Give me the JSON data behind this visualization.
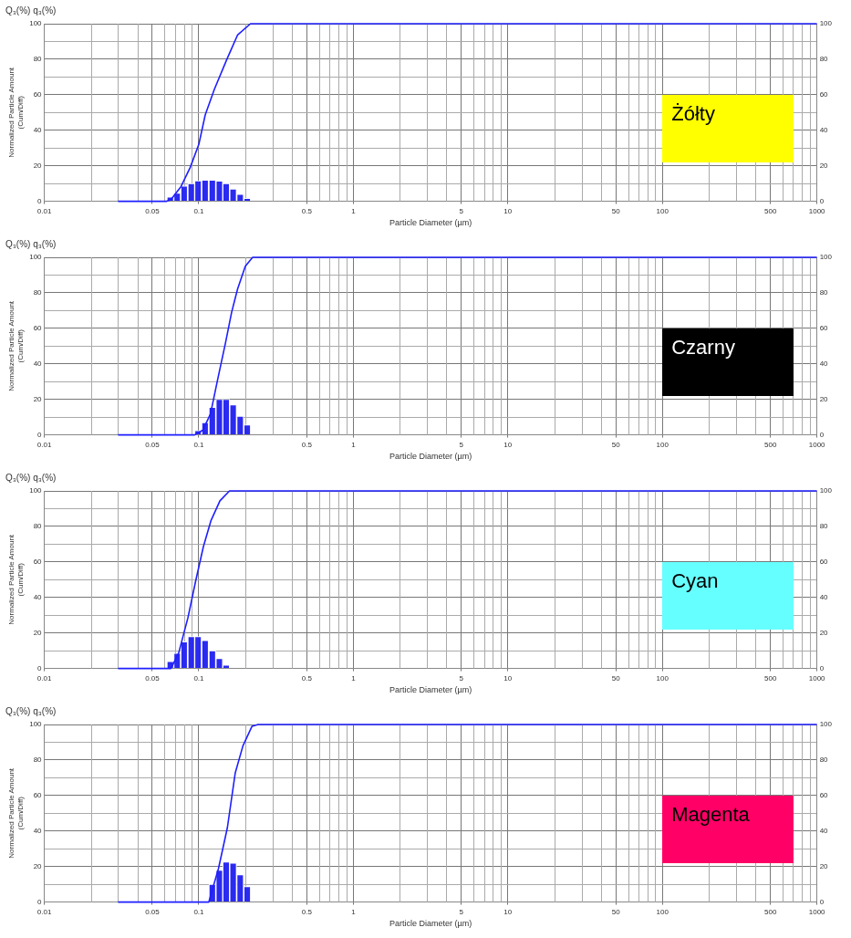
{
  "chart_data": [
    {
      "type": "histogram",
      "title": "Q₃(%) q₃(%)",
      "xlabel": "Particle Diameter (µm)",
      "ylabel": "Normalized Particle Amount\n(Cum/Diff)",
      "annotations": [
        "Żółty"
      ],
      "bins": [
        0.062,
        0.069,
        0.076,
        0.085,
        0.094,
        0.104,
        0.116,
        0.129,
        0.143,
        0.158,
        0.176,
        0.195,
        0.217
      ],
      "values": [
        2.4,
        4.6,
        8.6,
        10,
        11.6,
        12,
        12,
        11.4,
        10,
        7,
        4,
        1.7
      ],
      "color": "#2a2af0",
      "series": [
        {
          "type": "line",
          "color": "#1f1fff",
          "x": [
            0.03,
            0.062,
            0.066,
            0.0767,
            0.0879,
            0.1,
            0.11,
            0.126,
            0.152,
            0.178,
            0.216,
            1000
          ],
          "values": [
            0,
            0,
            1,
            8.3,
            19,
            32,
            48.6,
            63,
            80,
            93.6,
            100,
            100
          ]
        }
      ],
      "log": "x",
      "xlim": [
        0.01,
        1000
      ],
      "xticks": [
        0.01,
        0.05,
        0.1,
        0.5,
        1,
        5,
        10,
        50,
        100,
        500,
        1000
      ],
      "ylim": [
        0,
        100
      ],
      "yticks": [
        0,
        {
          "value": 10,
          "label": null
        },
        20,
        {
          "value": 30,
          "label": null
        },
        40,
        {
          "value": 50,
          "label": null
        },
        60,
        {
          "value": 70,
          "label": null
        },
        80,
        {
          "value": 90,
          "label": null
        },
        100
      ],
      "y2lim": [
        0,
        100
      ],
      "y2ticks": [
        0,
        20,
        40,
        60,
        80,
        100
      ],
      "grid": true,
      "marker": "none"
    },
    {
      "type": "histogram",
      "title": "Q₃(%) q₃(%)",
      "xlabel": "Particle Diameter (µm)",
      "ylabel": "Normalized Particle Amount\n(Cum/Diff)",
      "annotations": [
        "Czarny"
      ],
      "bins": [
        0.094,
        0.104,
        0.116,
        0.129,
        0.143,
        0.158,
        0.176,
        0.195,
        0.217
      ],
      "values": [
        2.4,
        7,
        15.5,
        20,
        20,
        17,
        10.5,
        5.7
      ],
      "color": "#2a2af0",
      "series": [
        {
          "type": "line",
          "color": "#1f1fff",
          "x": [
            0.03,
            0.094,
            0.106,
            0.119,
            0.133,
            0.149,
            0.163,
            0.178,
            0.2,
            0.223,
            1000
          ],
          "values": [
            0,
            0,
            2.6,
            11.8,
            32,
            52,
            69,
            82,
            95,
            100,
            100
          ]
        }
      ],
      "log": "x",
      "xlim": [
        0.01,
        1000
      ],
      "xticks": [
        0.01,
        0.05,
        0.1,
        0.5,
        1,
        5,
        10,
        50,
        100,
        500,
        1000
      ],
      "ylim": [
        0,
        100
      ],
      "yticks": [
        0,
        {
          "value": 10,
          "label": null
        },
        20,
        {
          "value": 30,
          "label": null
        },
        40,
        {
          "value": 50,
          "label": null
        },
        60,
        {
          "value": 70,
          "label": null
        },
        80,
        {
          "value": 90,
          "label": null
        },
        100
      ],
      "y2lim": [
        0,
        100
      ],
      "y2ticks": [
        0,
        20,
        40,
        60,
        80,
        100
      ],
      "grid": true,
      "marker": "none"
    },
    {
      "type": "histogram",
      "title": "Q₃(%) q₃(%)",
      "xlabel": "Particle Diameter (µm)",
      "ylabel": "Normalized Particle Amount\n(Cum/Diff)",
      "annotations": [
        "Cyan"
      ],
      "bins": [
        0.062,
        0.069,
        0.076,
        0.085,
        0.094,
        0.104,
        0.116,
        0.129,
        0.143,
        0.158
      ],
      "values": [
        4,
        8.6,
        15,
        18,
        18,
        15.8,
        10,
        5.6,
        2
      ],
      "color": "#2a2af0",
      "series": [
        {
          "type": "line",
          "color": "#1f1fff",
          "x": [
            0.03,
            0.066,
            0.074,
            0.085,
            0.095,
            0.107,
            0.12,
            0.137,
            0.158,
            1000
          ],
          "values": [
            0,
            0,
            8.6,
            28.5,
            48.5,
            68.5,
            83.4,
            94.4,
            100,
            100
          ]
        }
      ],
      "log": "x",
      "xlim": [
        0.01,
        1000
      ],
      "xticks": [
        0.01,
        0.05,
        0.1,
        0.5,
        1,
        5,
        10,
        50,
        100,
        500,
        1000
      ],
      "ylim": [
        0,
        100
      ],
      "yticks": [
        0,
        {
          "value": 10,
          "label": null
        },
        20,
        {
          "value": 30,
          "label": null
        },
        40,
        {
          "value": 50,
          "label": null
        },
        60,
        {
          "value": 70,
          "label": null
        },
        80,
        {
          "value": 90,
          "label": null
        },
        100
      ],
      "y2lim": [
        0,
        100
      ],
      "y2ticks": [
        0,
        20,
        40,
        60,
        80,
        100
      ],
      "grid": true,
      "marker": "none"
    },
    {
      "type": "histogram",
      "title": "Q₃(%) q₃(%)",
      "xlabel": "Particle Diameter (µm)",
      "ylabel": "Normalized Particle Amount\n(Cum/Diff)",
      "annotations": [
        "Magenta"
      ],
      "bins": [
        0.116,
        0.129,
        0.143,
        0.158,
        0.176,
        0.195,
        0.217
      ],
      "values": [
        10,
        18,
        22.6,
        22,
        15.4,
        8.8
      ],
      "color": "#2a2af0",
      "series": [
        {
          "type": "line",
          "color": "#1f1fff",
          "x": [
            0.03,
            0.116,
            0.134,
            0.153,
            0.172,
            0.193,
            0.221,
            0.242,
            1000
          ],
          "values": [
            0,
            0,
            18.8,
            41.8,
            72.6,
            88,
            99,
            100,
            100
          ]
        }
      ],
      "log": "x",
      "xlim": [
        0.01,
        1000
      ],
      "xticks": [
        0.01,
        0.05,
        0.1,
        0.5,
        1,
        5,
        10,
        50,
        100,
        500,
        1000
      ],
      "ylim": [
        0,
        100
      ],
      "yticks": [
        0,
        {
          "value": 10,
          "label": null
        },
        20,
        {
          "value": 30,
          "label": null
        },
        40,
        {
          "value": 50,
          "label": null
        },
        60,
        {
          "value": 70,
          "label": null
        },
        80,
        {
          "value": 90,
          "label": null
        },
        100
      ],
      "y2lim": [
        0,
        100
      ],
      "y2ticks": [
        0,
        20,
        40,
        60,
        80,
        100
      ],
      "grid": true,
      "marker": "none"
    }
  ]
}
